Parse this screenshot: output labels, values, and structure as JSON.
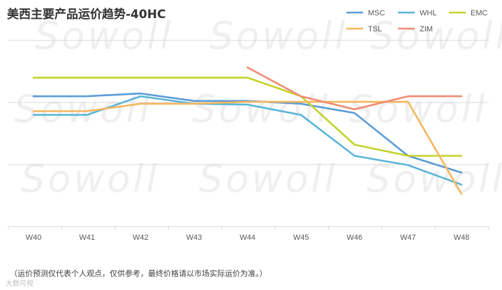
{
  "chart_data": {
    "type": "line",
    "title": "美西主要产品运价趋势-40HC",
    "categories": [
      "W40",
      "W41",
      "W42",
      "W43",
      "W44",
      "W45",
      "W46",
      "W47",
      "W48"
    ],
    "ylim": [
      0,
      100
    ],
    "grid": true,
    "legend_position": "top-right",
    "series": [
      {
        "name": "MSC",
        "color": "#5b9bd5",
        "values": [
          70,
          70,
          71.5,
          67.5,
          67.5,
          66,
          61,
          38,
          29
        ]
      },
      {
        "name": "WHL",
        "color": "#5bb5d9",
        "values": [
          60,
          60,
          70,
          66,
          65.5,
          60,
          38,
          33,
          22.5
        ]
      },
      {
        "name": "EMC",
        "color": "#c5d22a",
        "values": [
          80,
          80,
          80,
          80,
          80,
          70,
          44,
          38,
          38
        ]
      },
      {
        "name": "TSL",
        "color": "#f4b75f",
        "values": [
          62,
          62,
          66,
          66,
          67,
          67,
          67,
          67,
          17.5
        ]
      },
      {
        "name": "ZIM",
        "color": "#f08c73",
        "values": [
          null,
          null,
          null,
          null,
          85.5,
          70,
          63,
          70,
          70
        ]
      }
    ]
  },
  "footnote": "（运价预测仅代表个人观点，仅供参考，最终价格请以市场实际运价为准。）",
  "watermark": "Sowoll",
  "corner_watermark": "大数可视"
}
